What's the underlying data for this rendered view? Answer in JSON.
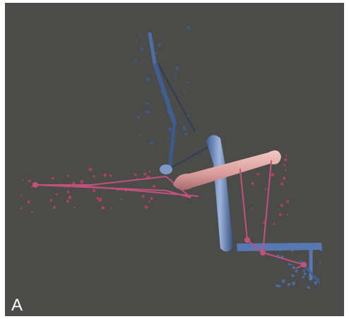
{
  "panel": {
    "label": "A"
  }
}
